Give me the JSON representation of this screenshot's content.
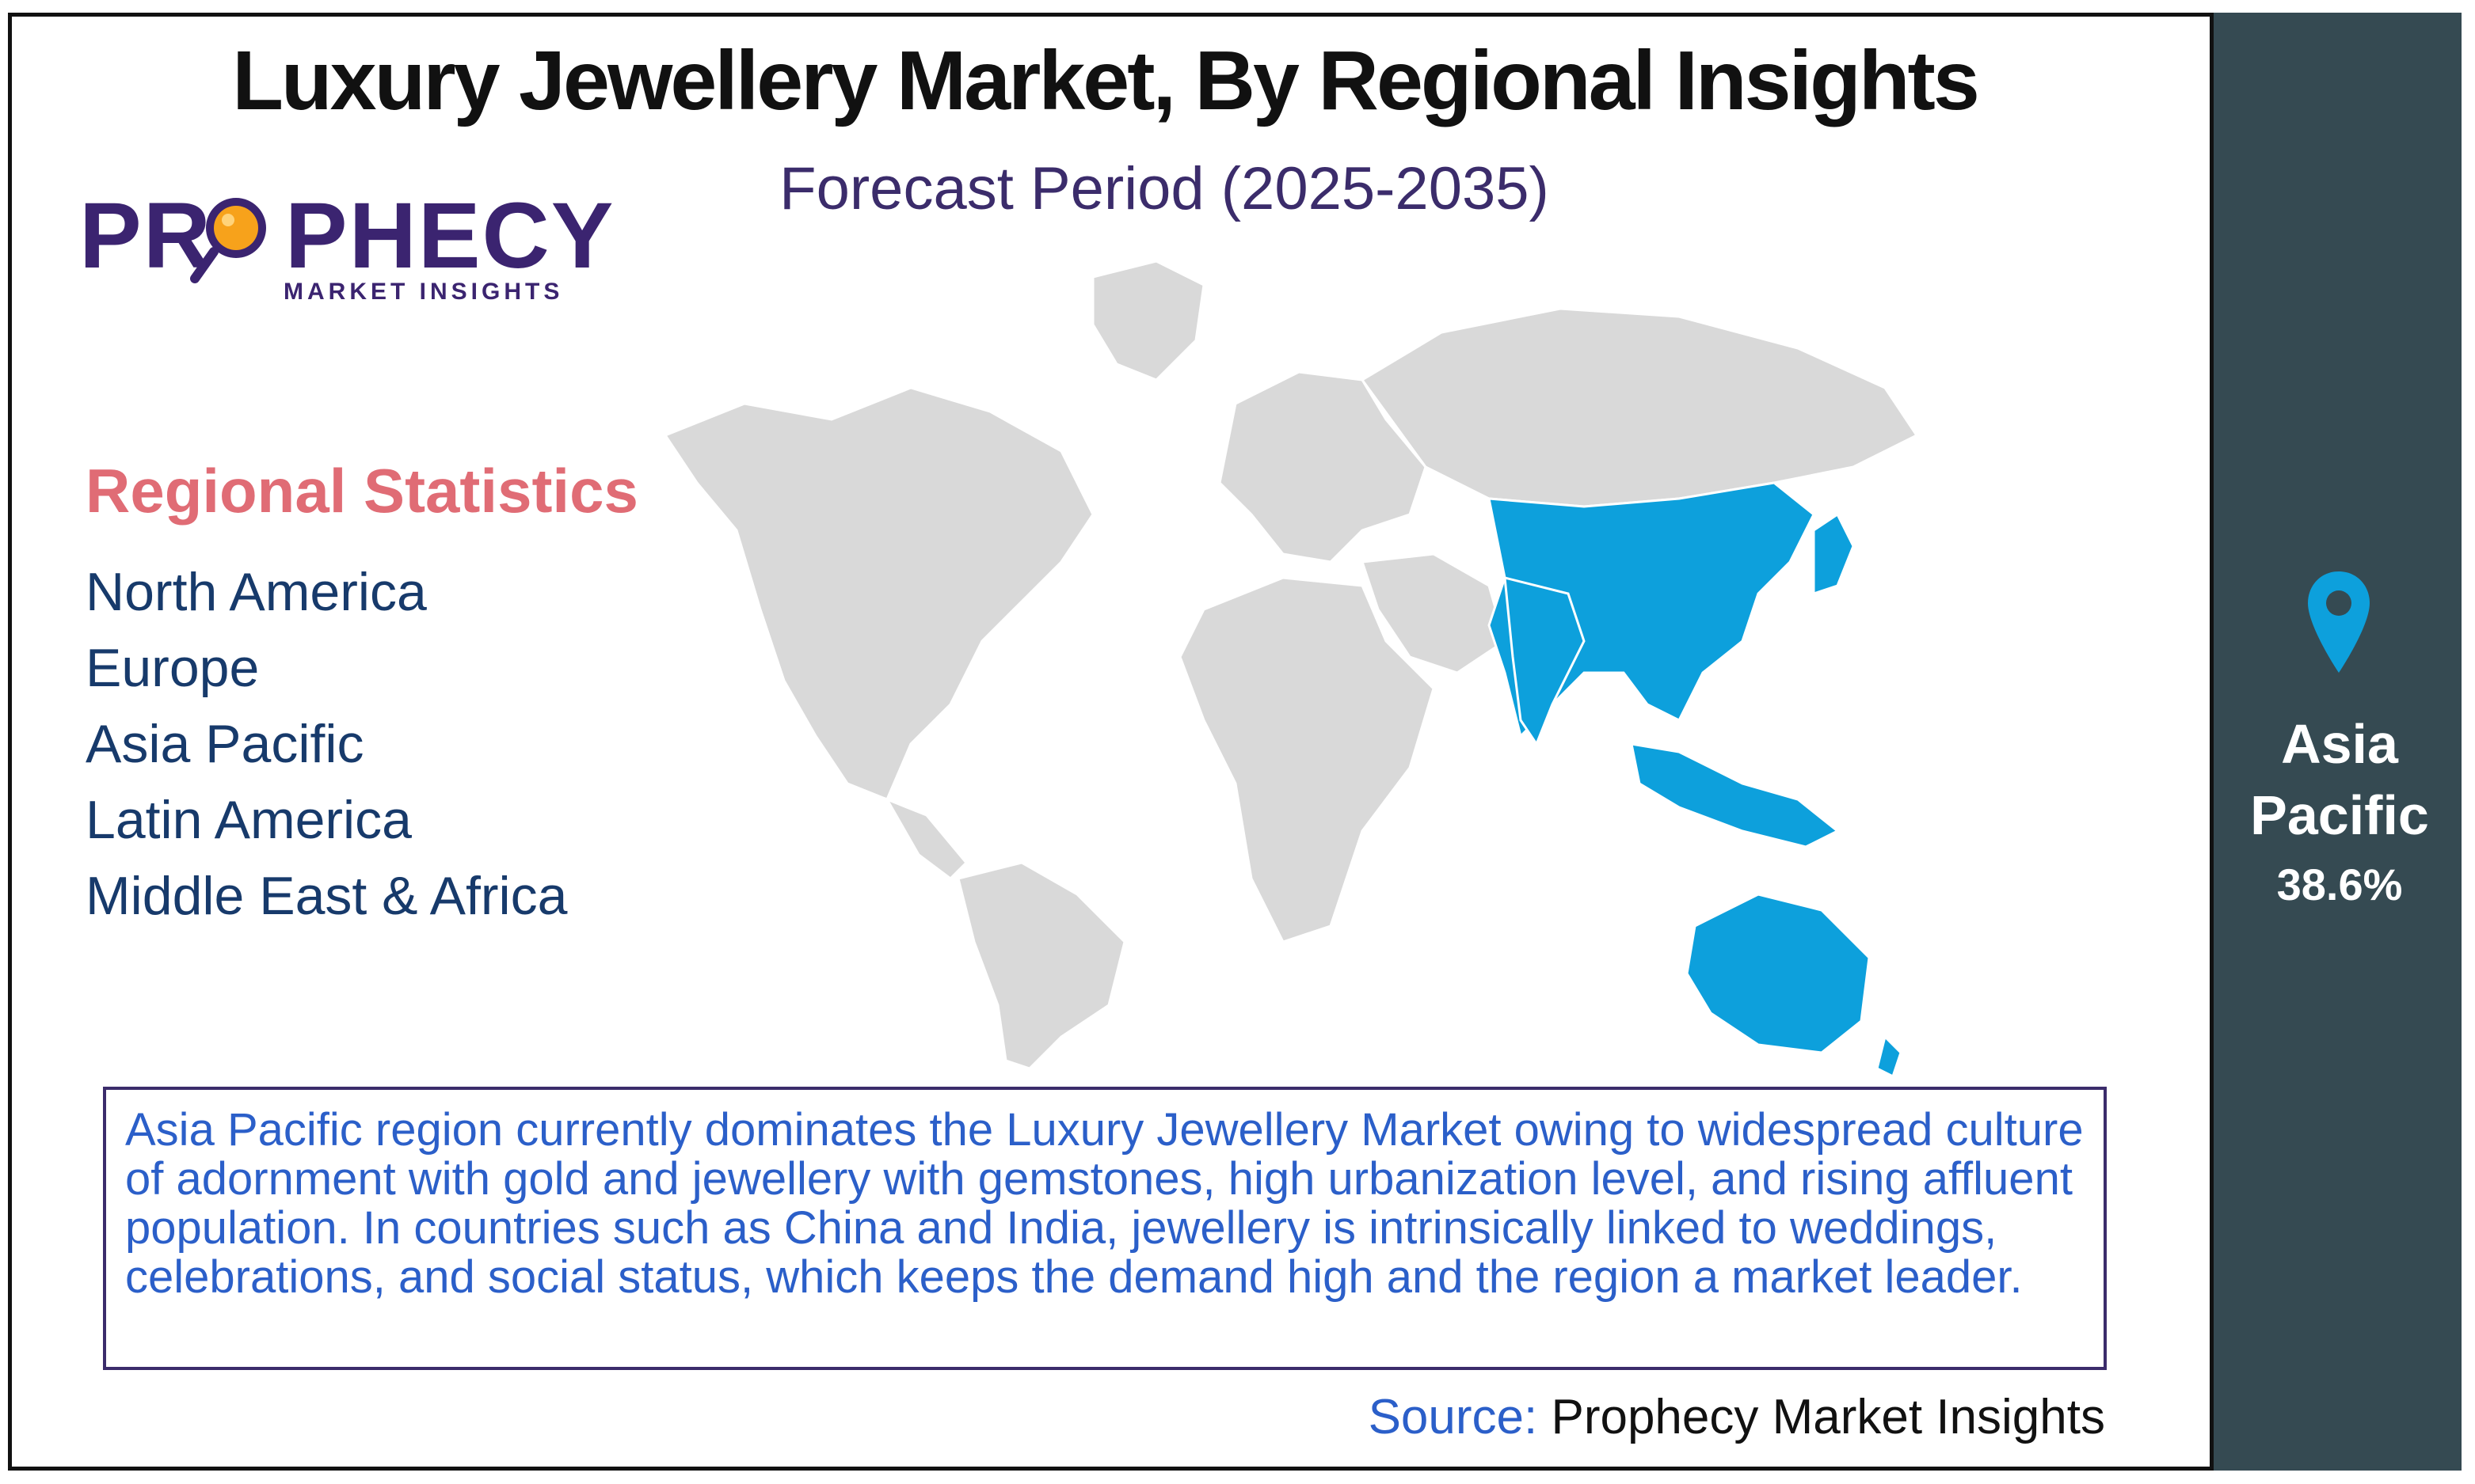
{
  "header": {
    "title": "Luxury Jewellery Market, By Regional Insights",
    "subtitle": "Forecast Period (2025-2035)"
  },
  "logo": {
    "word_left": "PR",
    "word_right": "PHECY",
    "tagline": "MARKET INSIGHTS"
  },
  "stats": {
    "heading": "Regional Statistics",
    "regions": [
      "North America",
      "Europe",
      "Asia Pacific",
      "Latin America",
      "Middle East & Africa"
    ]
  },
  "map": {
    "highlighted_region": "Asia Pacific",
    "highlight_color": "#0da0dc",
    "base_color": "#d9d9d9"
  },
  "description": "Asia Pacific region currently dominates the Luxury Jewellery Market owing to widespread culture of adornment with gold and jewellery with gemstones, high urbanization level, and rising affluent population. In countries such as China and India, jewellery is intrinsically linked to weddings, celebrations, and social status, which keeps the demand high and the region a market leader.",
  "source": {
    "label": "Source:",
    "value": "Prophecy Market Insights"
  },
  "side_panel": {
    "icon": "location-pin-icon",
    "region": "Asia Pacific",
    "share": "38.6%",
    "background": "#354a52",
    "pin_color": "#0da0dc"
  }
}
